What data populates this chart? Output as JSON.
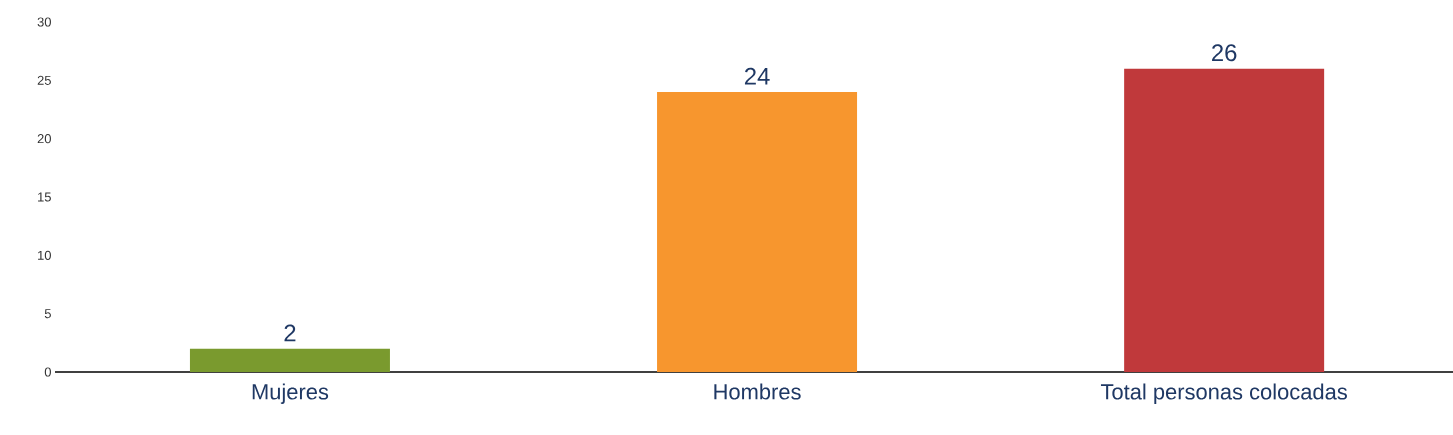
{
  "chart_data": {
    "type": "bar",
    "categories": [
      "Mujeres",
      "Hombres",
      "Total  personas colocadas"
    ],
    "values": [
      2,
      24,
      26
    ],
    "colors": [
      "#7a9a2e",
      "#f7962e",
      "#c0393b"
    ],
    "ylim": [
      0,
      30
    ],
    "yticks": [
      0,
      5,
      10,
      15,
      20,
      25,
      30
    ],
    "data_labels": true
  }
}
